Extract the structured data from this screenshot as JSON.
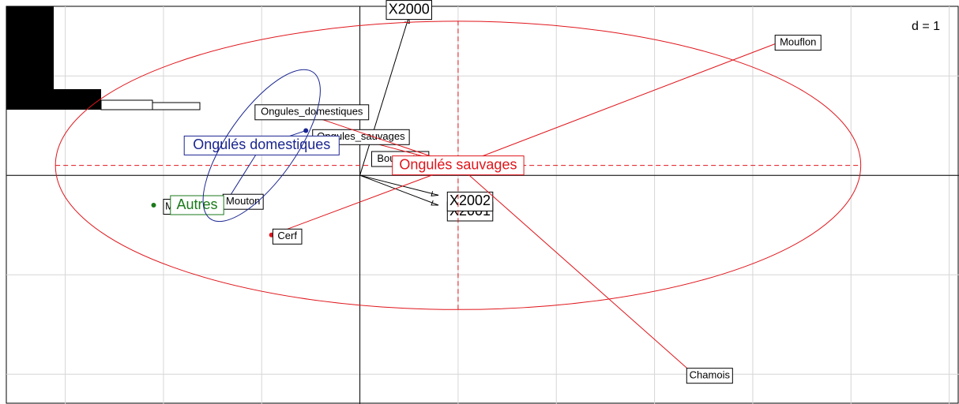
{
  "chart_data": {
    "type": "scatter",
    "scale_label": "d = 1",
    "xlim": [
      -3.6,
      6.1
    ],
    "ylim": [
      -2.3,
      1.7
    ],
    "grid": true,
    "colors": {
      "wild": "#e0151b",
      "domestic": "#1a2590",
      "other": "#1a7a1a",
      "axis": "#000000",
      "grid": "#d6d6d6"
    },
    "variable_arrows": [
      {
        "label": "X2000",
        "x": 0.5,
        "y": 1.6
      },
      {
        "label": "X2001",
        "x": 0.8,
        "y": -0.3
      },
      {
        "label": "X2002",
        "x": 0.8,
        "y": -0.2
      }
    ],
    "groups": [
      {
        "name": "Ongulés sauvages",
        "color": "#e0151b",
        "center": {
          "x": 1.0,
          "y": 0.1
        },
        "ellipse": {
          "rx": 4.1,
          "ry": 1.45,
          "angle_deg": 0
        },
        "points": [
          {
            "label": "Mouflon",
            "x": 4.3,
            "y": 1.35
          },
          {
            "label": "Chamois",
            "x": 3.4,
            "y": -2.0
          },
          {
            "label": "Cerf",
            "x": -0.9,
            "y": -0.6
          },
          {
            "label": "Bouquetin",
            "x": 0.25,
            "y": 0.18
          },
          {
            "label": "Ongules_sauvages",
            "x": -0.15,
            "y": 0.4
          },
          {
            "label": "Ongules_domestiques",
            "x": -0.65,
            "y": 0.65
          }
        ]
      },
      {
        "name": "Ongulés domestiques",
        "color": "#1a2590",
        "center": {
          "x": -1.0,
          "y": 0.3
        },
        "points": [
          {
            "label": "Mouton",
            "x": -1.35,
            "y": -0.25
          },
          {
            "label": "",
            "x": -0.55,
            "y": 0.45
          }
        ]
      },
      {
        "name": "Autres",
        "color": "#1a7a1a",
        "points": [
          {
            "label": "M",
            "x": -2.1,
            "y": -0.3
          }
        ]
      }
    ],
    "eigen_bars": [
      1.0,
      0.4,
      0.2
    ]
  }
}
